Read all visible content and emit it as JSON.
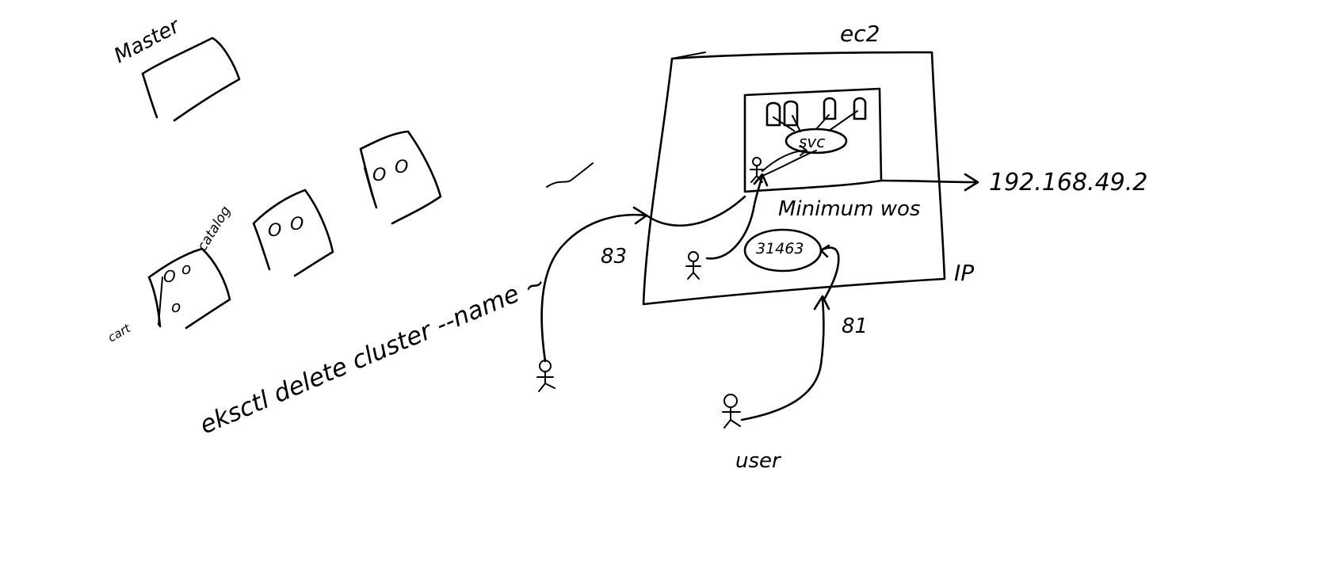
{
  "colors": {
    "ink": "#000000",
    "background": "#ffffff"
  },
  "labels": {
    "master": "Master",
    "catalog": "catalog",
    "cart": "cart",
    "cli_command": "eksctl delete cluster --name ~",
    "ec2": "ec2",
    "svc": "svc",
    "minikube_host": "Minimum wos",
    "pod_port": "31463",
    "ip_address": "192.168.49.2",
    "ip": "IP",
    "port_83": "83",
    "port_81": "81",
    "user": "user"
  },
  "icons": [
    "stick-figure-icon",
    "pod-icon",
    "node-box-icon",
    "arrow-icon"
  ]
}
